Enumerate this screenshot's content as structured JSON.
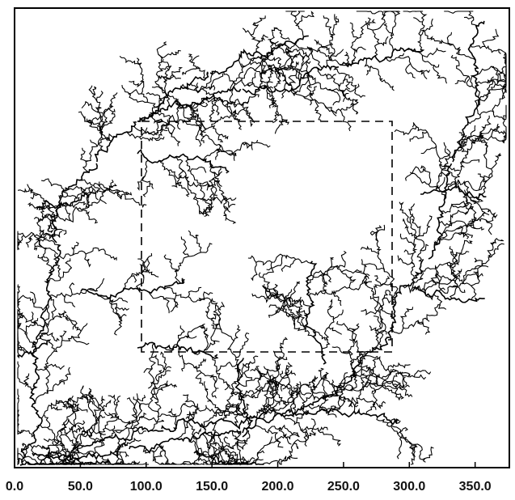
{
  "chart_data": {
    "type": "figure",
    "xlim": [
      0,
      376
    ],
    "xticks": [
      {
        "value": 0,
        "label": "0.0"
      },
      {
        "value": 50,
        "label": "50.0"
      },
      {
        "value": 100,
        "label": "100.0"
      },
      {
        "value": 150,
        "label": "150.0"
      },
      {
        "value": 200,
        "label": "200.0"
      },
      {
        "value": 250,
        "label": "250.0"
      },
      {
        "value": 300,
        "label": "300.0"
      },
      {
        "value": 350,
        "label": "350.0"
      }
    ]
  }
}
